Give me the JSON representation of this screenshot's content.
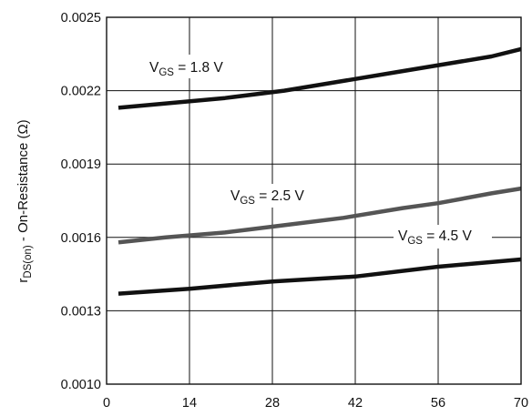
{
  "chart_data": {
    "type": "line",
    "title": "",
    "xlabel": "",
    "ylabel": {
      "main": "r",
      "sub": "DS(on)",
      "rest": " - On-Resistance (Ω)"
    },
    "xlim": [
      0,
      70
    ],
    "ylim": [
      0.001,
      0.0025
    ],
    "x_ticks": [
      "0",
      "14",
      "28",
      "42",
      "56",
      "70"
    ],
    "y_ticks": [
      "0.0010",
      "0.0013",
      "0.0016",
      "0.0019",
      "0.0022",
      "0.0025"
    ],
    "grid": true,
    "series": [
      {
        "label_main": "V",
        "label_sub": "GS",
        "label_rest": " = 1.8 V",
        "color": "#111111",
        "x": [
          2,
          20,
          30,
          40,
          50,
          60,
          65,
          70
        ],
        "y": [
          0.00213,
          0.00217,
          0.0022,
          0.00224,
          0.00228,
          0.00232,
          0.00234,
          0.00237
        ]
      },
      {
        "label_main": "V",
        "label_sub": "GS",
        "label_rest": " = 2.5 V",
        "color": "#555555",
        "x": [
          2,
          10,
          20,
          30,
          40,
          50,
          56,
          65,
          70
        ],
        "y": [
          0.00158,
          0.0016,
          0.00162,
          0.00165,
          0.00168,
          0.00172,
          0.00174,
          0.00178,
          0.0018
        ]
      },
      {
        "label_main": "V",
        "label_sub": "GS",
        "label_rest": " = 4.5 V",
        "color": "#111111",
        "x": [
          2,
          14,
          28,
          42,
          56,
          70
        ],
        "y": [
          0.00137,
          0.00139,
          0.00142,
          0.00144,
          0.00148,
          0.00151
        ]
      }
    ]
  }
}
